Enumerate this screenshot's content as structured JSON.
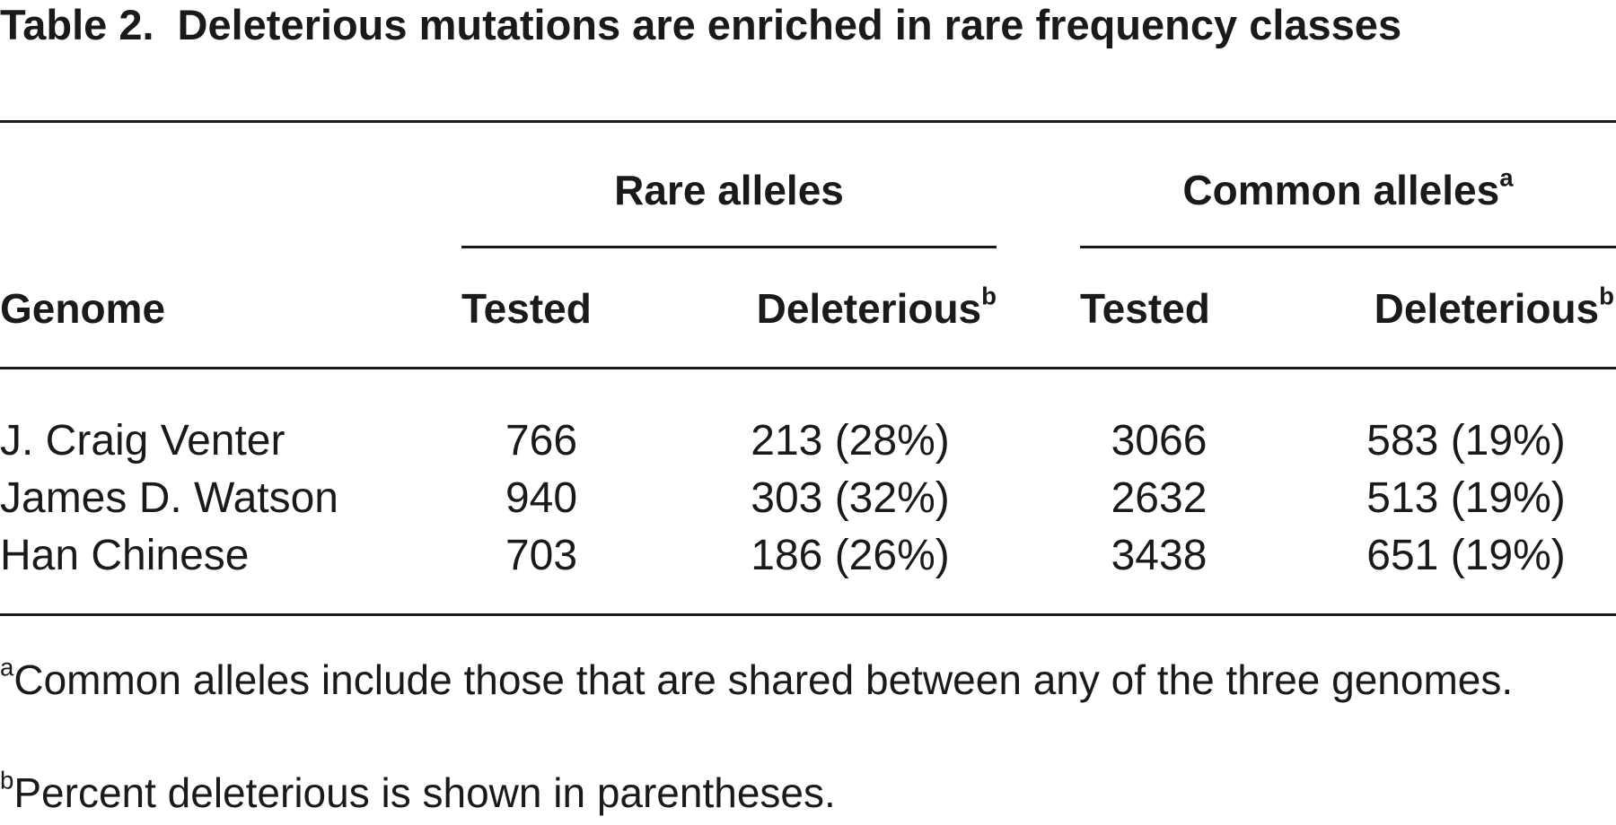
{
  "title": {
    "label": "Table 2.",
    "text": "Deleterious mutations are enriched in rare frequency classes"
  },
  "table": {
    "groups": [
      {
        "text": "Rare alleles"
      },
      {
        "text": "Common alleles",
        "note": "a"
      }
    ],
    "columns": [
      {
        "text": "Genome"
      },
      {
        "text": "Tested"
      },
      {
        "text": "Deleterious",
        "note": "b"
      },
      {
        "text": "Tested"
      },
      {
        "text": "Deleterious",
        "note": "b"
      }
    ],
    "rows": [
      [
        "J. Craig Venter",
        "766",
        "213 (28%)",
        "3066",
        "583 (19%)"
      ],
      [
        "James D. Watson",
        "940",
        "303 (32%)",
        "2632",
        "513 (19%)"
      ],
      [
        "Han Chinese",
        "703",
        "186 (26%)",
        "3438",
        "651 (19%)"
      ]
    ]
  },
  "footnotes": [
    {
      "mark": "a",
      "text": "Common alleles include those that are shared between any of the three genomes."
    },
    {
      "mark": "b",
      "text": "Percent deleterious is shown in parentheses."
    }
  ]
}
